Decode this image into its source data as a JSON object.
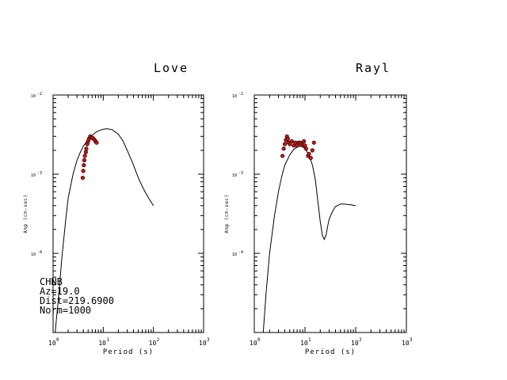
{
  "station_info": {
    "station": "CHNB",
    "azimuth": "Az=19.0",
    "distance": "Dist=219.6900",
    "norm": "Norm=1000"
  },
  "colors": {
    "line": "#000000",
    "marker_fill": "#cc1111",
    "marker_edge": "#000000",
    "background": "#ffffff"
  },
  "chart_data": [
    {
      "type": "line",
      "title": "Love",
      "xlabel": "Period (s)",
      "ylabel": "Amp (cm-sec)",
      "x_scale": "log",
      "y_scale": "log",
      "xlim": [
        1,
        1000
      ],
      "ylim": [
        1e-05,
        0.01
      ],
      "x_ticks": [
        {
          "base": "10",
          "exp": "0",
          "value": 1
        },
        {
          "base": "10",
          "exp": "1",
          "value": 10
        },
        {
          "base": "10",
          "exp": "2",
          "value": 100
        },
        {
          "base": "10",
          "exp": "3",
          "value": 1000
        }
      ],
      "y_ticks": [
        {
          "base": "10",
          "exp": "-4",
          "value": 0.0001
        },
        {
          "base": "10",
          "exp": "-3",
          "value": 0.001
        },
        {
          "base": "10",
          "exp": "-2",
          "value": 0.01
        }
      ],
      "grid": false,
      "series": [
        {
          "kind": "model-curve",
          "x": [
            1.1,
            1.3,
            1.5,
            1.8,
            2.0,
            2.5,
            3.0,
            3.5,
            4.0,
            5.0,
            6.0,
            7.0,
            8.0,
            10.0,
            12.0,
            15.0,
            20.0,
            25.0,
            30.0,
            40.0,
            50.0,
            60.0,
            70.0,
            80.0,
            100.0
          ],
          "y": [
            1e-05,
            3e-05,
            9e-05,
            0.00028,
            0.0005,
            0.001,
            0.0015,
            0.0019,
            0.00225,
            0.00275,
            0.0031,
            0.00335,
            0.00352,
            0.0037,
            0.00375,
            0.00365,
            0.0032,
            0.0026,
            0.002,
            0.0013,
            0.0009,
            0.0007,
            0.00058,
            0.0005,
            0.0004
          ]
        },
        {
          "kind": "observed",
          "x": [
            3.9,
            4.0,
            4.1,
            4.2,
            4.3,
            4.5,
            4.6,
            4.8,
            5.0,
            5.2,
            5.5,
            5.8,
            6.2,
            6.6,
            7.0,
            7.4
          ],
          "y": [
            0.0009,
            0.0011,
            0.0013,
            0.0015,
            0.0017,
            0.0019,
            0.0021,
            0.0024,
            0.0026,
            0.0028,
            0.003,
            0.0029,
            0.00285,
            0.00275,
            0.0026,
            0.0025
          ]
        }
      ]
    },
    {
      "type": "line",
      "title": "Rayl",
      "xlabel": "Period (s)",
      "ylabel": "Amp (cm-sec)",
      "x_scale": "log",
      "y_scale": "log",
      "xlim": [
        1,
        1000
      ],
      "ylim": [
        1e-05,
        0.01
      ],
      "x_ticks": [
        {
          "base": "10",
          "exp": "0",
          "value": 1
        },
        {
          "base": "10",
          "exp": "1",
          "value": 10
        },
        {
          "base": "10",
          "exp": "2",
          "value": 100
        },
        {
          "base": "10",
          "exp": "3",
          "value": 1000
        }
      ],
      "y_ticks": [
        {
          "base": "10",
          "exp": "-4",
          "value": 0.0001
        },
        {
          "base": "10",
          "exp": "-3",
          "value": 0.001
        },
        {
          "base": "10",
          "exp": "-2",
          "value": 0.01
        }
      ],
      "grid": false,
      "series": [
        {
          "kind": "model-curve",
          "x": [
            1.5,
            1.7,
            2.0,
            2.5,
            3.0,
            3.5,
            4.0,
            5.0,
            6.0,
            7.0,
            8.0,
            9.0,
            10.0,
            12.0,
            14.0,
            16.0,
            18.0,
            20.0,
            22.0,
            24.0,
            26.0,
            28.0,
            30.0,
            35.0,
            40.0,
            50.0,
            60.0,
            80.0,
            100.0
          ],
          "y": [
            1e-05,
            3e-05,
            0.0001,
            0.0003,
            0.0006,
            0.00095,
            0.0013,
            0.00175,
            0.00205,
            0.0022,
            0.00225,
            0.00222,
            0.0021,
            0.00175,
            0.0013,
            0.00085,
            0.00045,
            0.00025,
            0.00017,
            0.00015,
            0.00017,
            0.00022,
            0.00027,
            0.00034,
            0.00039,
            0.00042,
            0.00042,
            0.00041,
            0.0004
          ]
        },
        {
          "kind": "observed",
          "x": [
            3.6,
            3.8,
            4.0,
            4.2,
            4.4,
            4.6,
            4.8,
            5.0,
            5.5,
            6.0,
            6.5,
            7.0,
            7.5,
            8.0,
            8.5,
            9.0,
            9.5,
            10.0,
            10.5,
            11.5,
            12.0,
            13.0,
            14.0,
            15.0
          ],
          "y": [
            0.0017,
            0.0021,
            0.0024,
            0.0027,
            0.003,
            0.0028,
            0.0025,
            0.0024,
            0.0026,
            0.0023,
            0.0025,
            0.0023,
            0.0025,
            0.0025,
            0.0024,
            0.0023,
            0.0026,
            0.0023,
            0.0021,
            0.0017,
            0.0018,
            0.0016,
            0.002,
            0.0025
          ]
        }
      ]
    }
  ]
}
